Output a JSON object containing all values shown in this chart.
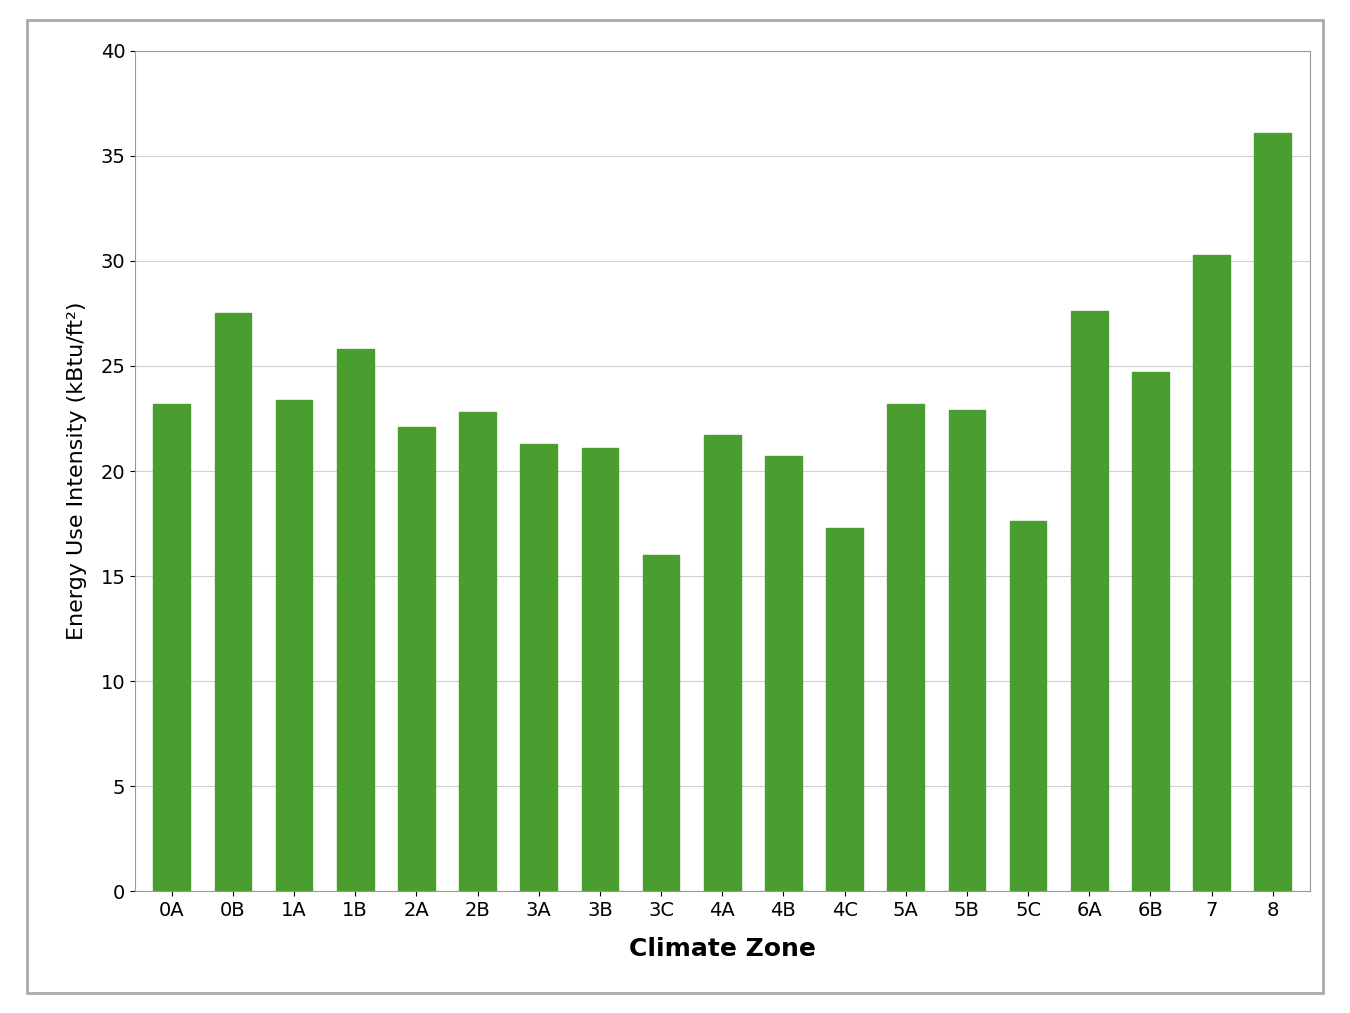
{
  "categories": [
    "0A",
    "0B",
    "1A",
    "1B",
    "2A",
    "2B",
    "3A",
    "3B",
    "3C",
    "4A",
    "4B",
    "4C",
    "5A",
    "5B",
    "5C",
    "6A",
    "6B",
    "7",
    "8"
  ],
  "values": [
    23.2,
    27.5,
    23.4,
    25.8,
    22.1,
    22.8,
    21.3,
    21.1,
    16.0,
    21.7,
    20.7,
    17.3,
    23.2,
    22.9,
    17.6,
    27.6,
    24.7,
    30.3,
    36.1
  ],
  "bar_color": "#4a9e2f",
  "title": "",
  "xlabel": "Climate Zone",
  "ylabel": "Energy Use Intensity (kBtu/ft²)",
  "ylim": [
    0,
    40
  ],
  "yticks": [
    0,
    5,
    10,
    15,
    20,
    25,
    30,
    35,
    40
  ],
  "background_color": "#ffffff",
  "grid_color": "#d0d0d0",
  "bar_width": 0.6,
  "xlabel_fontsize": 18,
  "ylabel_fontsize": 16,
  "tick_fontsize": 14,
  "frame_color": "#aaaaaa",
  "frame_linewidth": 2.0
}
